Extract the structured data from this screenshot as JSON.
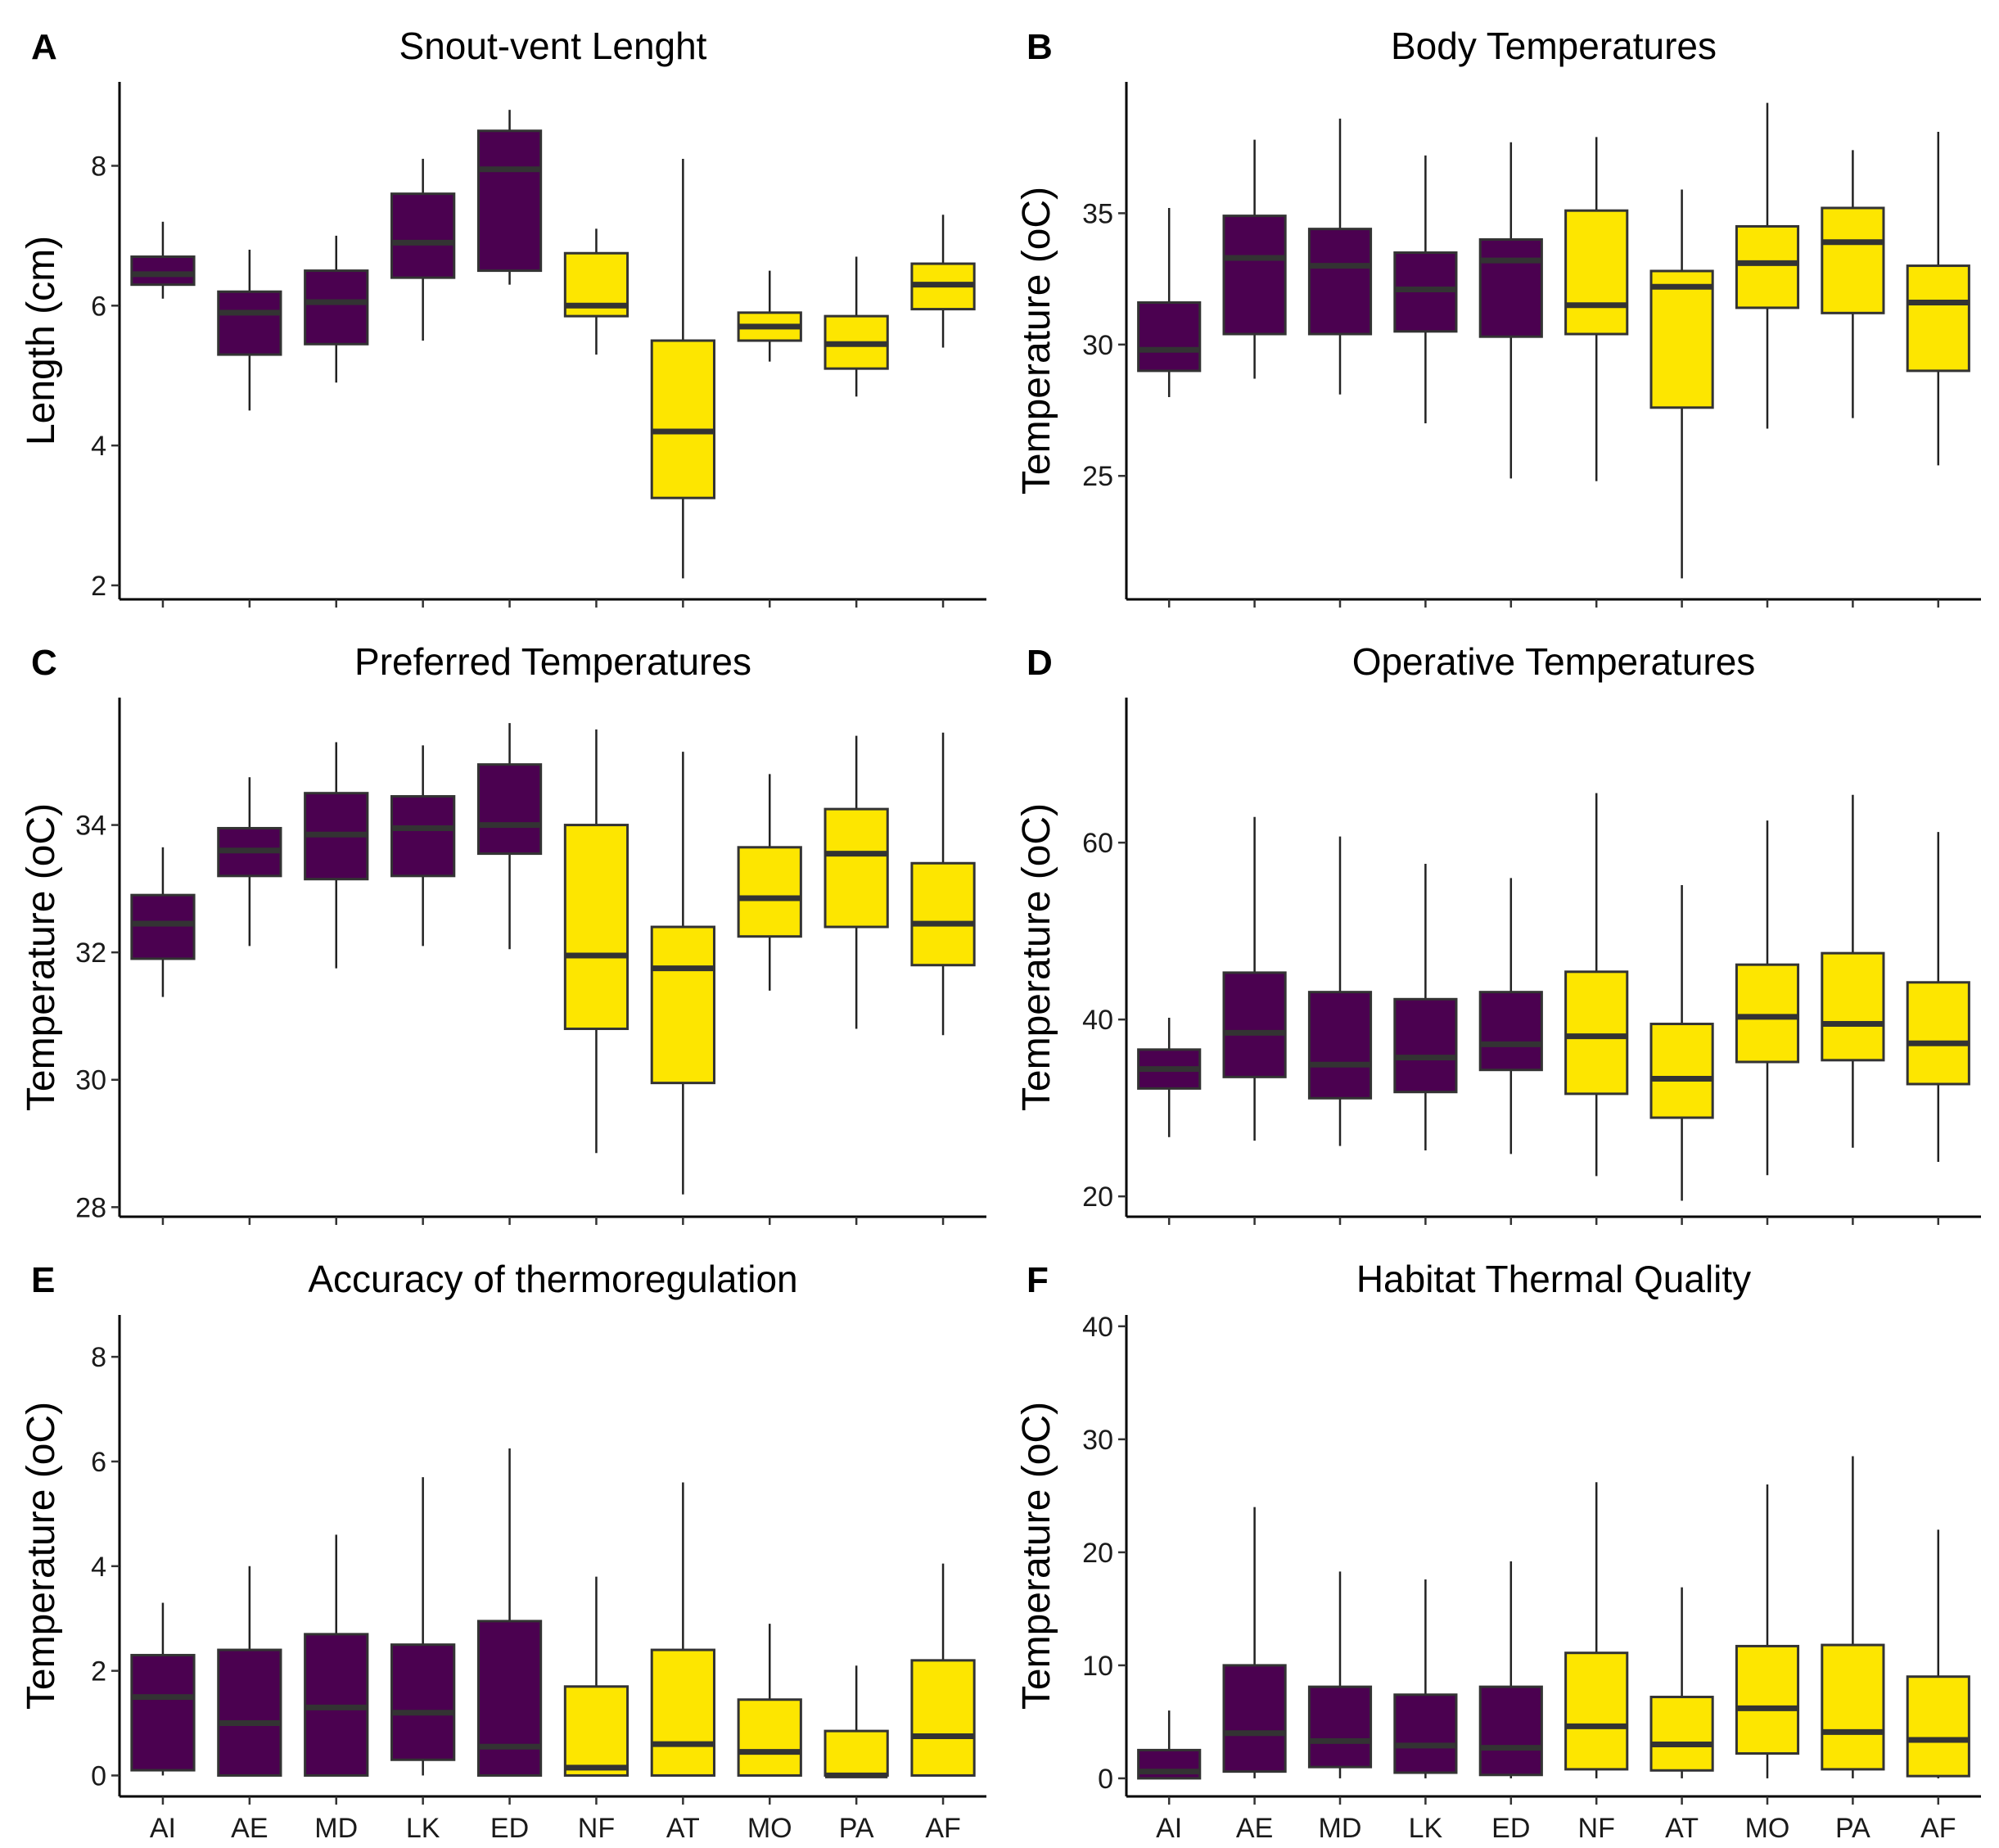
{
  "categories": [
    "AI",
    "AE",
    "MD",
    "LK",
    "ED",
    "NF",
    "AT",
    "MO",
    "PA",
    "AF"
  ],
  "colors": {
    "group1": "#4b0150",
    "group2": "#fde600"
  },
  "group_of_category": [
    1,
    1,
    1,
    1,
    1,
    2,
    2,
    2,
    2,
    2
  ],
  "chart_data": [
    {
      "letter": "A",
      "title": "Snout-vent Lenght",
      "type": "box",
      "ylabel": "Length (cm)",
      "ylim": [
        1.8,
        9.2
      ],
      "yticks": [
        "2",
        "4",
        "6",
        "8"
      ],
      "show_xlabels": false,
      "boxes": [
        {
          "category": "AI",
          "min": 6.1,
          "q1": 6.3,
          "median": 6.45,
          "q3": 6.7,
          "max": 7.2
        },
        {
          "category": "AE",
          "min": 4.5,
          "q1": 5.3,
          "median": 5.9,
          "q3": 6.2,
          "max": 6.8
        },
        {
          "category": "MD",
          "min": 4.9,
          "q1": 5.45,
          "median": 6.05,
          "q3": 6.5,
          "max": 7.0
        },
        {
          "category": "LK",
          "min": 5.5,
          "q1": 6.4,
          "median": 6.9,
          "q3": 7.6,
          "max": 8.1
        },
        {
          "category": "ED",
          "min": 6.3,
          "q1": 6.5,
          "median": 7.95,
          "q3": 8.5,
          "max": 8.8
        },
        {
          "category": "NF",
          "min": 5.3,
          "q1": 5.85,
          "median": 6.0,
          "q3": 6.75,
          "max": 7.1
        },
        {
          "category": "AT",
          "min": 2.1,
          "q1": 3.25,
          "median": 4.2,
          "q3": 5.5,
          "max": 8.1
        },
        {
          "category": "MO",
          "min": 5.2,
          "q1": 5.5,
          "median": 5.7,
          "q3": 5.9,
          "max": 6.5
        },
        {
          "category": "PA",
          "min": 4.7,
          "q1": 5.1,
          "median": 5.45,
          "q3": 5.85,
          "max": 6.7
        },
        {
          "category": "AF",
          "min": 5.4,
          "q1": 5.95,
          "median": 6.3,
          "q3": 6.6,
          "max": 7.3
        }
      ]
    },
    {
      "letter": "B",
      "title": "Body Temperatures",
      "type": "box",
      "ylabel": "Temperature (oC)",
      "ylim": [
        20.3,
        40.0
      ],
      "yticks": [
        "25",
        "30",
        "35"
      ],
      "show_xlabels": false,
      "boxes": [
        {
          "category": "AI",
          "min": 28.0,
          "q1": 29.0,
          "median": 29.8,
          "q3": 31.6,
          "max": 35.2
        },
        {
          "category": "AE",
          "min": 28.7,
          "q1": 30.4,
          "median": 33.3,
          "q3": 34.9,
          "max": 37.8
        },
        {
          "category": "MD",
          "min": 28.1,
          "q1": 30.4,
          "median": 33.0,
          "q3": 34.4,
          "max": 38.6
        },
        {
          "category": "LK",
          "min": 27.0,
          "q1": 30.5,
          "median": 32.1,
          "q3": 33.5,
          "max": 37.2
        },
        {
          "category": "ED",
          "min": 24.9,
          "q1": 30.3,
          "median": 33.2,
          "q3": 34.0,
          "max": 37.7
        },
        {
          "category": "NF",
          "min": 24.8,
          "q1": 30.4,
          "median": 31.5,
          "q3": 35.1,
          "max": 37.9
        },
        {
          "category": "AT",
          "min": 21.1,
          "q1": 27.6,
          "median": 32.2,
          "q3": 32.8,
          "max": 35.9
        },
        {
          "category": "MO",
          "min": 26.8,
          "q1": 31.4,
          "median": 33.1,
          "q3": 34.5,
          "max": 39.2
        },
        {
          "category": "PA",
          "min": 27.2,
          "q1": 31.2,
          "median": 33.9,
          "q3": 35.2,
          "max": 37.4
        },
        {
          "category": "AF",
          "min": 25.4,
          "q1": 29.0,
          "median": 31.6,
          "q3": 33.0,
          "max": 38.1
        }
      ]
    },
    {
      "letter": "C",
      "title": "Preferred Temperatures",
      "type": "box",
      "ylabel": "Temperature (oC)",
      "ylim": [
        27.85,
        36.0
      ],
      "yticks": [
        "28",
        "30",
        "32",
        "34"
      ],
      "show_xlabels": false,
      "boxes": [
        {
          "category": "AI",
          "min": 31.3,
          "q1": 31.9,
          "median": 32.45,
          "q3": 32.9,
          "max": 33.65
        },
        {
          "category": "AE",
          "min": 32.1,
          "q1": 33.2,
          "median": 33.6,
          "q3": 33.95,
          "max": 34.75
        },
        {
          "category": "MD",
          "min": 31.75,
          "q1": 33.15,
          "median": 33.85,
          "q3": 34.5,
          "max": 35.3
        },
        {
          "category": "LK",
          "min": 32.1,
          "q1": 33.2,
          "median": 33.95,
          "q3": 34.45,
          "max": 35.25
        },
        {
          "category": "ED",
          "min": 32.05,
          "q1": 33.55,
          "median": 34.0,
          "q3": 34.95,
          "max": 35.6
        },
        {
          "category": "NF",
          "min": 28.85,
          "q1": 30.8,
          "median": 31.95,
          "q3": 34.0,
          "max": 35.5
        },
        {
          "category": "AT",
          "min": 28.2,
          "q1": 29.95,
          "median": 31.75,
          "q3": 32.4,
          "max": 35.15
        },
        {
          "category": "MO",
          "min": 31.4,
          "q1": 32.25,
          "median": 32.85,
          "q3": 33.65,
          "max": 34.8
        },
        {
          "category": "PA",
          "min": 30.8,
          "q1": 32.4,
          "median": 33.55,
          "q3": 34.25,
          "max": 35.4
        },
        {
          "category": "AF",
          "min": 30.7,
          "q1": 31.8,
          "median": 32.45,
          "q3": 33.4,
          "max": 35.45
        }
      ]
    },
    {
      "letter": "D",
      "title": "Operative Temperatures",
      "type": "box",
      "ylabel": "Temperature (oC)",
      "ylim": [
        17.7,
        76.4
      ],
      "yticks": [
        "20",
        "40",
        "60"
      ],
      "show_xlabels": false,
      "boxes": [
        {
          "category": "AI",
          "min": 26.7,
          "q1": 32.2,
          "median": 34.4,
          "q3": 36.6,
          "max": 40.2
        },
        {
          "category": "AE",
          "min": 26.3,
          "q1": 33.5,
          "median": 38.5,
          "q3": 45.3,
          "max": 62.9
        },
        {
          "category": "MD",
          "min": 25.7,
          "q1": 31.1,
          "median": 34.9,
          "q3": 43.1,
          "max": 60.7
        },
        {
          "category": "LK",
          "min": 25.2,
          "q1": 31.8,
          "median": 35.7,
          "q3": 42.3,
          "max": 57.6
        },
        {
          "category": "ED",
          "min": 24.8,
          "q1": 34.3,
          "median": 37.2,
          "q3": 43.1,
          "max": 56.0
        },
        {
          "category": "NF",
          "min": 22.3,
          "q1": 31.6,
          "median": 38.1,
          "q3": 45.4,
          "max": 65.6
        },
        {
          "category": "AT",
          "min": 19.5,
          "q1": 28.9,
          "median": 33.3,
          "q3": 39.5,
          "max": 55.2
        },
        {
          "category": "MO",
          "min": 22.4,
          "q1": 35.2,
          "median": 40.3,
          "q3": 46.2,
          "max": 62.5
        },
        {
          "category": "PA",
          "min": 25.5,
          "q1": 35.4,
          "median": 39.5,
          "q3": 47.5,
          "max": 65.4
        },
        {
          "category": "AF",
          "min": 23.9,
          "q1": 32.7,
          "median": 37.3,
          "q3": 44.2,
          "max": 61.2
        }
      ]
    },
    {
      "letter": "E",
      "title": "Accuracy of thermoregulation",
      "type": "box",
      "ylabel": "Temperature (oC)",
      "ylim": [
        -0.4,
        8.8
      ],
      "yticks": [
        "0",
        "2",
        "4",
        "6",
        "8"
      ],
      "show_xlabels": true,
      "boxes": [
        {
          "category": "AI",
          "min": 0.0,
          "q1": 0.1,
          "median": 1.5,
          "q3": 2.3,
          "max": 3.3
        },
        {
          "category": "AE",
          "min": 0.0,
          "q1": 0.0,
          "median": 1.0,
          "q3": 2.4,
          "max": 4.0
        },
        {
          "category": "MD",
          "min": 0.0,
          "q1": 0.0,
          "median": 1.3,
          "q3": 2.7,
          "max": 4.6
        },
        {
          "category": "LK",
          "min": 0.0,
          "q1": 0.3,
          "median": 1.2,
          "q3": 2.5,
          "max": 5.7
        },
        {
          "category": "ED",
          "min": 0.0,
          "q1": 0.0,
          "median": 0.55,
          "q3": 2.95,
          "max": 6.25
        },
        {
          "category": "NF",
          "min": 0.0,
          "q1": 0.0,
          "median": 0.15,
          "q3": 1.7,
          "max": 3.8
        },
        {
          "category": "AT",
          "min": 0.0,
          "q1": 0.0,
          "median": 0.6,
          "q3": 2.4,
          "max": 5.6
        },
        {
          "category": "MO",
          "min": 0.0,
          "q1": 0.0,
          "median": 0.45,
          "q3": 1.45,
          "max": 2.9
        },
        {
          "category": "PA",
          "min": 0.0,
          "q1": 0.0,
          "median": 0.0,
          "q3": 0.85,
          "max": 2.1
        },
        {
          "category": "AF",
          "min": 0.0,
          "q1": 0.0,
          "median": 0.75,
          "q3": 2.2,
          "max": 4.05
        }
      ]
    },
    {
      "letter": "F",
      "title": "Habitat Thermal Quality",
      "type": "box",
      "ylabel": "Temperature (oC)",
      "ylim": [
        -1.6,
        41.0
      ],
      "yticks": [
        "0",
        "10",
        "20",
        "30",
        "40"
      ],
      "show_xlabels": true,
      "boxes": [
        {
          "category": "AI",
          "min": 0.0,
          "q1": 0.0,
          "median": 0.6,
          "q3": 2.5,
          "max": 6.0
        },
        {
          "category": "AE",
          "min": 0.0,
          "q1": 0.6,
          "median": 4.0,
          "q3": 10.0,
          "max": 24.0
        },
        {
          "category": "MD",
          "min": 0.0,
          "q1": 1.0,
          "median": 3.3,
          "q3": 8.1,
          "max": 18.3
        },
        {
          "category": "LK",
          "min": 0.0,
          "q1": 0.5,
          "median": 2.9,
          "q3": 7.4,
          "max": 17.6
        },
        {
          "category": "ED",
          "min": 0.0,
          "q1": 0.3,
          "median": 2.7,
          "q3": 8.1,
          "max": 19.2
        },
        {
          "category": "NF",
          "min": 0.0,
          "q1": 0.8,
          "median": 4.6,
          "q3": 11.1,
          "max": 26.2
        },
        {
          "category": "AT",
          "min": 0.0,
          "q1": 0.7,
          "median": 3.0,
          "q3": 7.2,
          "max": 16.9
        },
        {
          "category": "MO",
          "min": 0.0,
          "q1": 2.2,
          "median": 6.2,
          "q3": 11.7,
          "max": 26.0
        },
        {
          "category": "PA",
          "min": 0.0,
          "q1": 0.8,
          "median": 4.1,
          "q3": 11.8,
          "max": 28.5
        },
        {
          "category": "AF",
          "min": 0.0,
          "q1": 0.2,
          "median": 3.4,
          "q3": 9.0,
          "max": 22.0
        }
      ]
    }
  ]
}
